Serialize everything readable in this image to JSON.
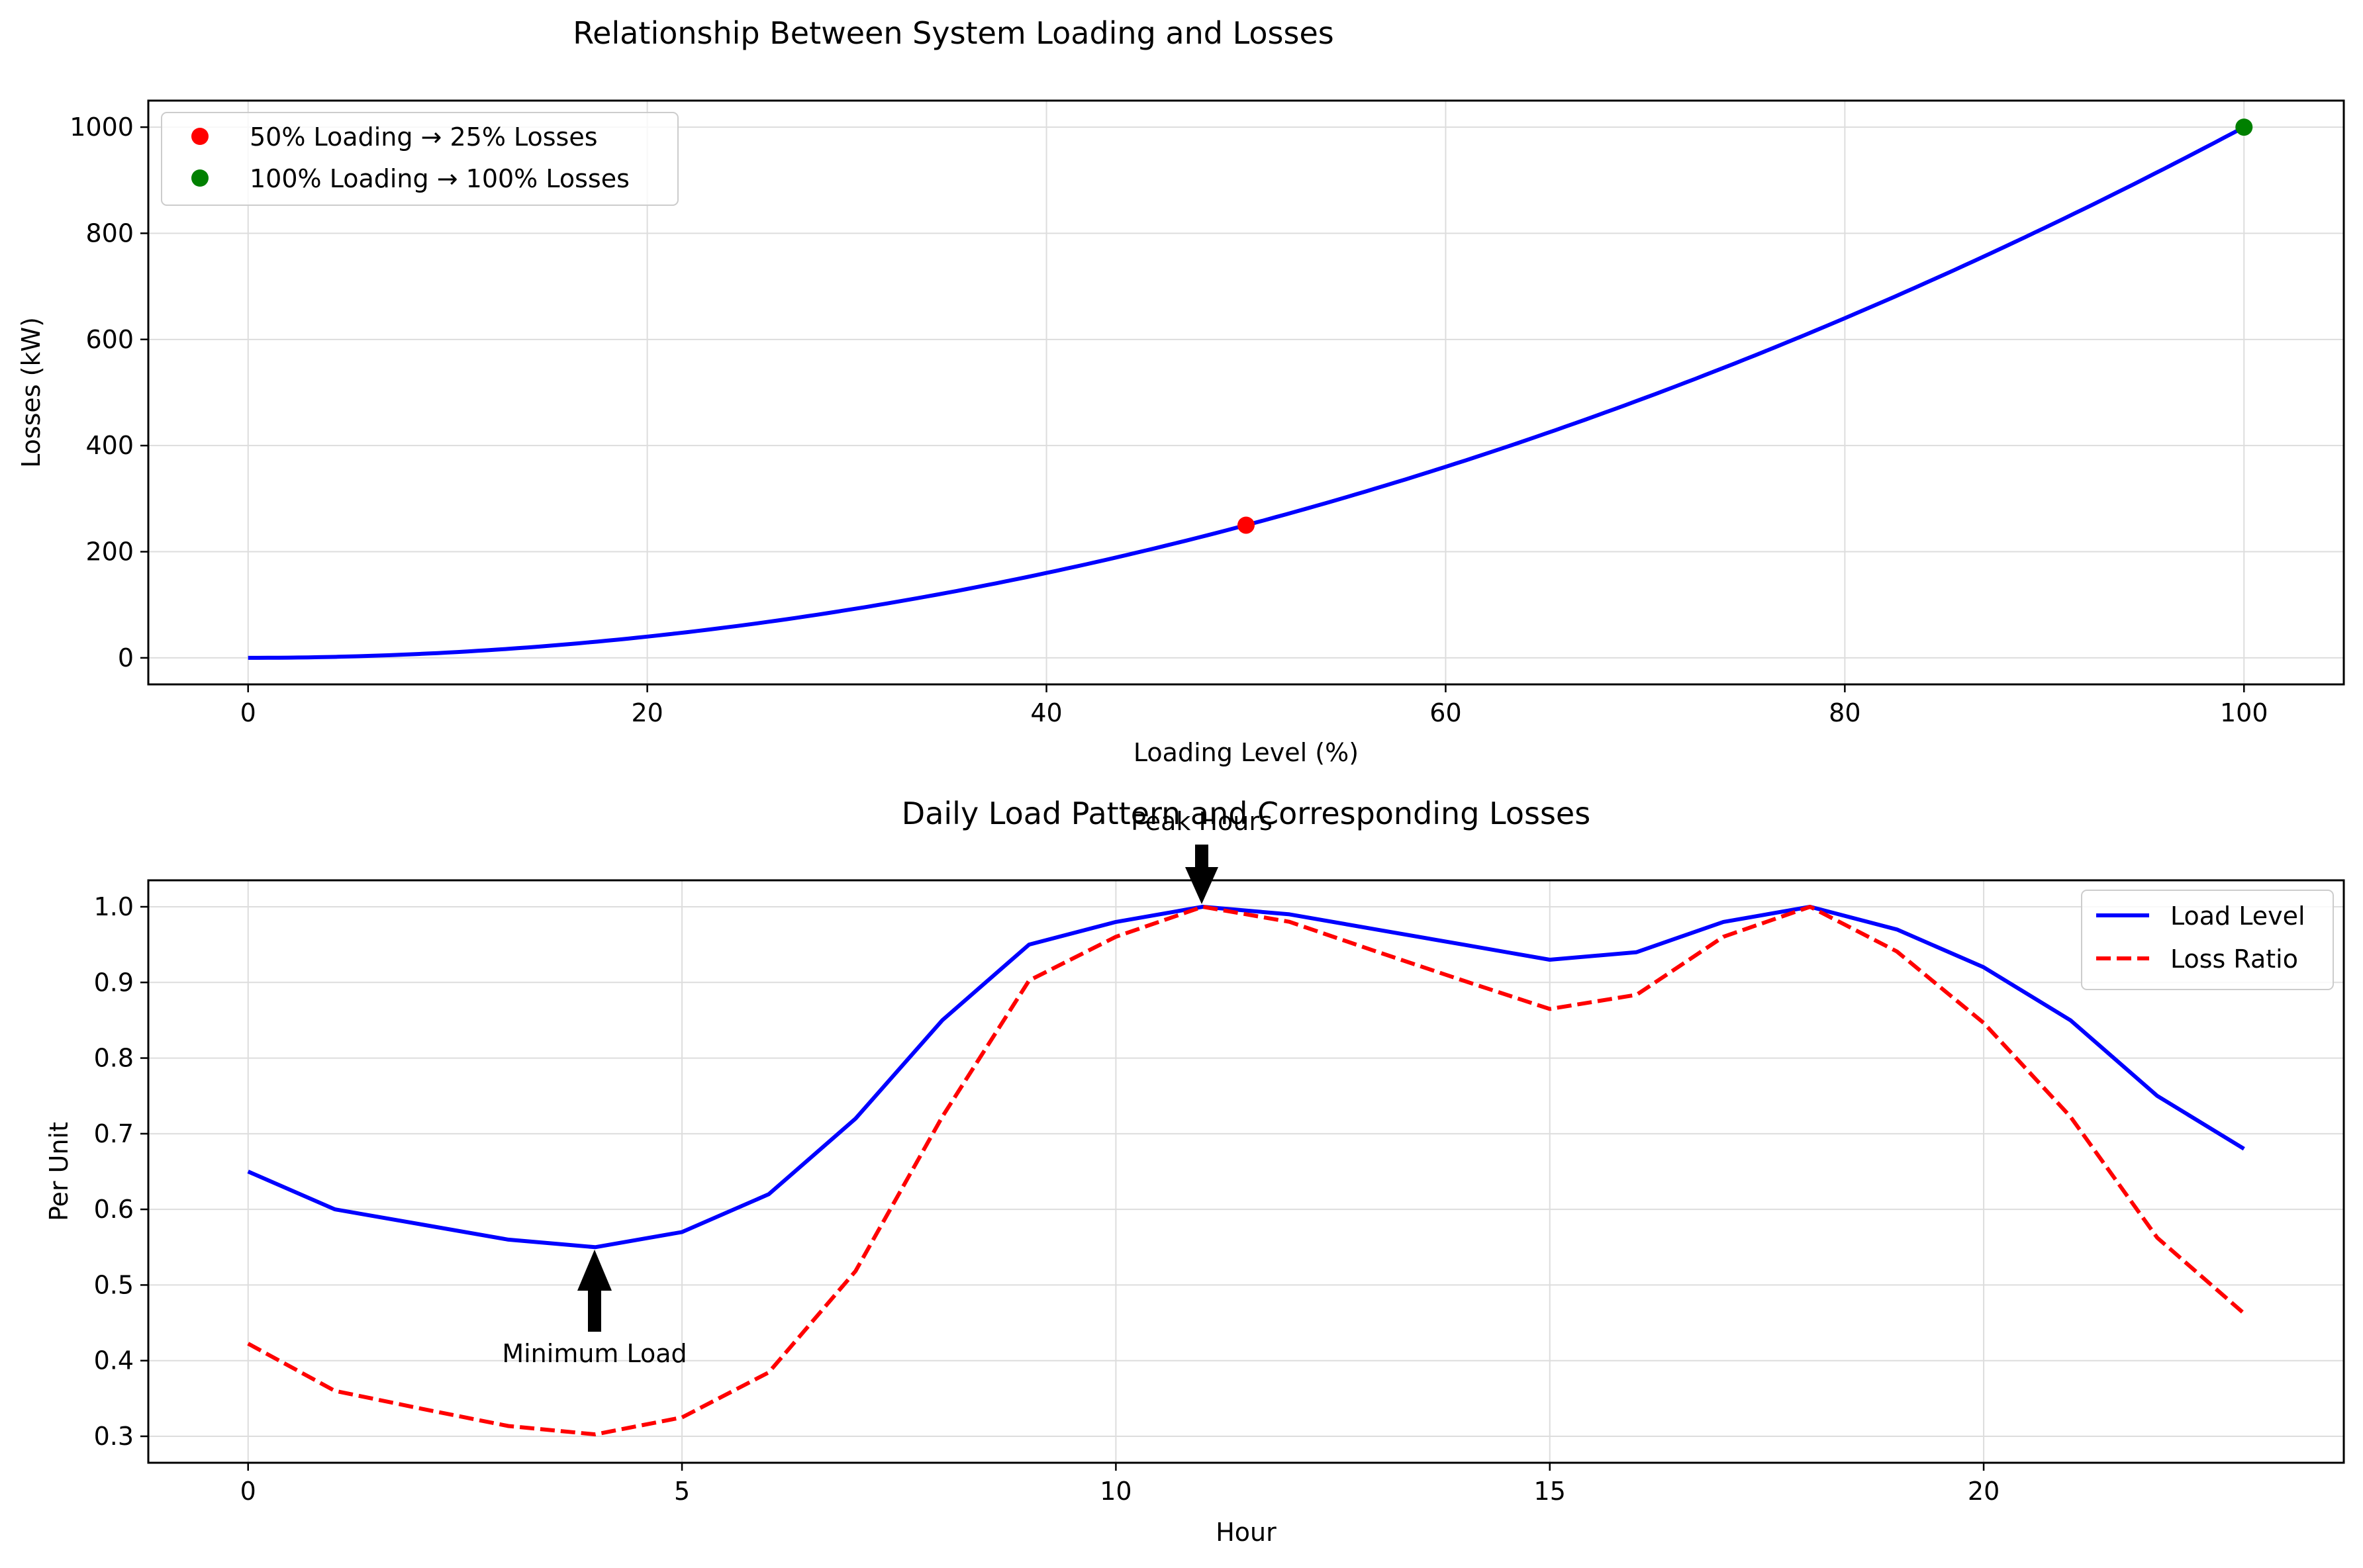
{
  "colors": {
    "blue": "#0000ff",
    "red": "#ff0000",
    "green": "#008000",
    "grid": "#dddddd",
    "black": "#000000"
  },
  "chart_data": [
    {
      "type": "line",
      "title": "Relationship Between System Loading and Losses",
      "xlabel": "Loading Level (%)",
      "ylabel": "Losses (kW)",
      "xlim": [
        -5,
        105
      ],
      "ylim": [
        -50,
        1050
      ],
      "xticks": [
        0,
        20,
        40,
        60,
        80,
        100
      ],
      "yticks": [
        0,
        200,
        400,
        600,
        800,
        1000
      ],
      "grid": true,
      "legend_position": "upper-left",
      "curve": {
        "formula": "losses = 1000 * (loading / 100)^2",
        "x_range": [
          0,
          100
        ],
        "color": "#0000ff"
      },
      "points": [
        {
          "name": "50% Loading → 25% Losses",
          "x": 50,
          "y": 250,
          "color": "#ff0000"
        },
        {
          "name": "100% Loading → 100% Losses",
          "x": 100,
          "y": 1000,
          "color": "#008000"
        }
      ]
    },
    {
      "type": "line",
      "title": "Daily Load Pattern and Corresponding Losses",
      "xlabel": "Hour",
      "ylabel": "Per Unit",
      "xlim": [
        -1.15,
        24.15
      ],
      "ylim": [
        0.265,
        1.035
      ],
      "xticks": [
        0,
        5,
        10,
        15,
        20
      ],
      "yticks": [
        0.3,
        0.4,
        0.5,
        0.6,
        0.7,
        0.8,
        0.9,
        1.0
      ],
      "grid": true,
      "legend_position": "upper-right",
      "x": [
        0,
        1,
        2,
        3,
        4,
        5,
        6,
        7,
        8,
        9,
        10,
        11,
        12,
        13,
        14,
        15,
        16,
        17,
        18,
        19,
        20,
        21,
        22,
        23
      ],
      "series": [
        {
          "name": "Load Level",
          "style": "solid",
          "color": "#0000ff",
          "values": [
            0.65,
            0.6,
            0.58,
            0.56,
            0.55,
            0.57,
            0.62,
            0.72,
            0.85,
            0.95,
            0.98,
            1.0,
            0.99,
            0.97,
            0.95,
            0.93,
            0.94,
            0.98,
            1.0,
            0.97,
            0.92,
            0.85,
            0.75,
            0.68
          ]
        },
        {
          "name": "Loss Ratio",
          "style": "dashed",
          "color": "#ff0000",
          "values": [
            0.4225,
            0.36,
            0.3364,
            0.3136,
            0.3025,
            0.3249,
            0.3844,
            0.5184,
            0.7225,
            0.9025,
            0.9604,
            1.0,
            0.9801,
            0.9409,
            0.9025,
            0.8649,
            0.8836,
            0.9604,
            1.0,
            0.9409,
            0.8464,
            0.7225,
            0.5625,
            0.4624
          ]
        }
      ],
      "annotations": [
        {
          "text": "Peak Hours",
          "x": 11,
          "y": 1.0,
          "arrow": "down"
        },
        {
          "text": "Minimum Load",
          "x": 4,
          "y": 0.55,
          "arrow": "up"
        }
      ]
    }
  ]
}
